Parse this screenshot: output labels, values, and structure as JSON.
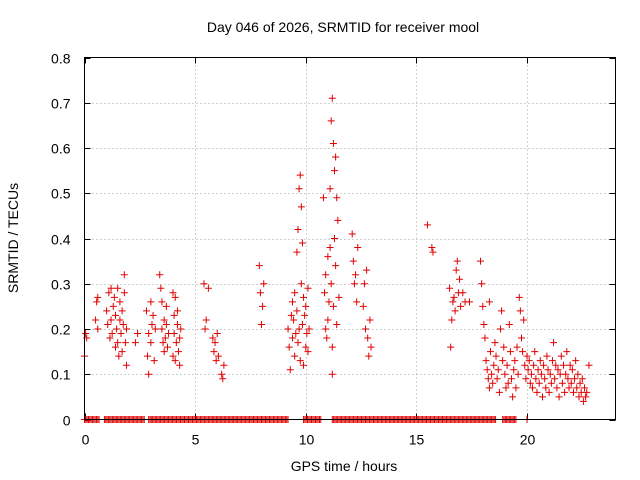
{
  "chart_data": {
    "type": "scatter",
    "title": "Day 046 of 2026, SRMTID for receiver mool",
    "xlabel": "GPS time / hours",
    "ylabel": "SRMTID / TECUs",
    "xlim": [
      0,
      24
    ],
    "ylim": [
      0,
      0.8
    ],
    "xticks": [
      "0",
      "5",
      "10",
      "15",
      "20"
    ],
    "xtick_values": [
      0,
      5,
      10,
      15,
      20
    ],
    "yticks": [
      "0",
      "0.1",
      "0.2",
      "0.3",
      "0.4",
      "0.5",
      "0.6",
      "0.7",
      "0.8"
    ],
    "ytick_values": [
      0,
      0.1,
      0.2,
      0.3,
      0.4,
      0.5,
      0.6,
      0.7,
      0.8
    ],
    "grid": true,
    "marker": "plus",
    "color": "#e00000",
    "series": [
      {
        "name": "SRMTID",
        "points": [
          [
            0.0,
            0.14
          ],
          [
            0.05,
            0.19
          ],
          [
            0.1,
            0.18
          ],
          [
            0.5,
            0.22
          ],
          [
            0.55,
            0.26
          ],
          [
            0.6,
            0.27
          ],
          [
            0.6,
            0.2
          ],
          [
            1.0,
            0.24
          ],
          [
            1.05,
            0.21
          ],
          [
            1.1,
            0.28
          ],
          [
            1.15,
            0.18
          ],
          [
            1.2,
            0.29
          ],
          [
            1.2,
            0.22
          ],
          [
            1.25,
            0.19
          ],
          [
            1.3,
            0.25
          ],
          [
            1.35,
            0.27
          ],
          [
            1.4,
            0.16
          ],
          [
            1.4,
            0.23
          ],
          [
            1.45,
            0.2
          ],
          [
            1.5,
            0.29
          ],
          [
            1.5,
            0.17
          ],
          [
            1.55,
            0.14
          ],
          [
            1.6,
            0.22
          ],
          [
            1.6,
            0.26
          ],
          [
            1.65,
            0.19
          ],
          [
            1.7,
            0.15
          ],
          [
            1.7,
            0.24
          ],
          [
            1.75,
            0.21
          ],
          [
            1.8,
            0.32
          ],
          [
            1.8,
            0.28
          ],
          [
            1.85,
            0.17
          ],
          [
            1.9,
            0.12
          ],
          [
            1.9,
            0.2
          ],
          [
            2.3,
            0.17
          ],
          [
            2.4,
            0.19
          ],
          [
            2.8,
            0.24
          ],
          [
            2.85,
            0.14
          ],
          [
            2.9,
            0.1
          ],
          [
            2.9,
            0.19
          ],
          [
            3.0,
            0.26
          ],
          [
            3.0,
            0.17
          ],
          [
            3.05,
            0.21
          ],
          [
            3.1,
            0.23
          ],
          [
            3.15,
            0.13
          ],
          [
            3.2,
            0.2
          ],
          [
            3.4,
            0.32
          ],
          [
            3.45,
            0.29
          ],
          [
            3.5,
            0.2
          ],
          [
            3.5,
            0.26
          ],
          [
            3.55,
            0.17
          ],
          [
            3.6,
            0.15
          ],
          [
            3.6,
            0.22
          ],
          [
            3.65,
            0.18
          ],
          [
            3.7,
            0.21
          ],
          [
            3.7,
            0.25
          ],
          [
            3.75,
            0.16
          ],
          [
            3.8,
            0.19
          ],
          [
            4.0,
            0.28
          ],
          [
            4.0,
            0.14
          ],
          [
            4.05,
            0.23
          ],
          [
            4.05,
            0.19
          ],
          [
            4.1,
            0.27
          ],
          [
            4.1,
            0.13
          ],
          [
            4.15,
            0.17
          ],
          [
            4.2,
            0.21
          ],
          [
            4.2,
            0.24
          ],
          [
            4.25,
            0.15
          ],
          [
            4.3,
            0.12
          ],
          [
            4.3,
            0.18
          ],
          [
            4.35,
            0.2
          ],
          [
            5.4,
            0.3
          ],
          [
            5.45,
            0.2
          ],
          [
            5.5,
            0.22
          ],
          [
            5.6,
            0.29
          ],
          [
            5.8,
            0.18
          ],
          [
            5.85,
            0.15
          ],
          [
            5.9,
            0.17
          ],
          [
            5.95,
            0.13
          ],
          [
            6.0,
            0.19
          ],
          [
            6.05,
            0.14
          ],
          [
            6.2,
            0.1
          ],
          [
            6.25,
            0.09
          ],
          [
            6.3,
            0.12
          ],
          [
            7.9,
            0.34
          ],
          [
            7.95,
            0.28
          ],
          [
            8.0,
            0.21
          ],
          [
            8.05,
            0.25
          ],
          [
            8.1,
            0.3
          ],
          [
            9.2,
            0.2
          ],
          [
            9.25,
            0.16
          ],
          [
            9.3,
            0.11
          ],
          [
            9.35,
            0.23
          ],
          [
            9.4,
            0.26
          ],
          [
            9.4,
            0.18
          ],
          [
            9.45,
            0.22
          ],
          [
            9.5,
            0.28
          ],
          [
            9.5,
            0.14
          ],
          [
            9.55,
            0.19
          ],
          [
            9.6,
            0.37
          ],
          [
            9.6,
            0.24
          ],
          [
            9.65,
            0.42
          ],
          [
            9.65,
            0.17
          ],
          [
            9.7,
            0.51
          ],
          [
            9.7,
            0.2
          ],
          [
            9.75,
            0.54
          ],
          [
            9.75,
            0.13
          ],
          [
            9.8,
            0.47
          ],
          [
            9.8,
            0.3
          ],
          [
            9.85,
            0.39
          ],
          [
            9.85,
            0.21
          ],
          [
            9.9,
            0.27
          ],
          [
            9.9,
            0.12
          ],
          [
            9.95,
            0.23
          ],
          [
            10.0,
            0.25
          ],
          [
            10.0,
            0.16
          ],
          [
            10.05,
            0.19
          ],
          [
            10.1,
            0.29
          ],
          [
            10.1,
            0.15
          ],
          [
            10.15,
            0.2
          ],
          [
            10.8,
            0.49
          ],
          [
            10.85,
            0.28
          ],
          [
            10.9,
            0.2
          ],
          [
            10.9,
            0.32
          ],
          [
            10.95,
            0.18
          ],
          [
            11.0,
            0.22
          ],
          [
            11.0,
            0.36
          ],
          [
            11.05,
            0.26
          ],
          [
            11.1,
            0.51
          ],
          [
            11.1,
            0.38
          ],
          [
            11.15,
            0.66
          ],
          [
            11.15,
            0.3
          ],
          [
            11.2,
            0.71
          ],
          [
            11.2,
            0.16
          ],
          [
            11.25,
            0.61
          ],
          [
            11.25,
            0.25
          ],
          [
            11.3,
            0.55
          ],
          [
            11.3,
            0.4
          ],
          [
            11.35,
            0.58
          ],
          [
            11.35,
            0.34
          ],
          [
            11.4,
            0.49
          ],
          [
            11.4,
            0.21
          ],
          [
            11.45,
            0.44
          ],
          [
            11.5,
            0.27
          ],
          [
            11.2,
            0.1
          ],
          [
            12.1,
            0.41
          ],
          [
            12.15,
            0.35
          ],
          [
            12.2,
            0.3
          ],
          [
            12.25,
            0.32
          ],
          [
            12.3,
            0.26
          ],
          [
            12.35,
            0.38
          ],
          [
            12.6,
            0.25
          ],
          [
            12.65,
            0.3
          ],
          [
            12.7,
            0.2
          ],
          [
            12.75,
            0.33
          ],
          [
            12.8,
            0.18
          ],
          [
            12.85,
            0.14
          ],
          [
            12.9,
            0.22
          ],
          [
            12.95,
            0.16
          ],
          [
            15.5,
            0.43
          ],
          [
            15.7,
            0.38
          ],
          [
            15.75,
            0.37
          ],
          [
            16.5,
            0.29
          ],
          [
            16.55,
            0.16
          ],
          [
            16.6,
            0.22
          ],
          [
            16.65,
            0.26
          ],
          [
            16.7,
            0.27
          ],
          [
            16.75,
            0.24
          ],
          [
            16.8,
            0.33
          ],
          [
            16.85,
            0.35
          ],
          [
            16.9,
            0.28
          ],
          [
            16.95,
            0.31
          ],
          [
            17.0,
            0.25
          ],
          [
            17.1,
            0.28
          ],
          [
            17.2,
            0.26
          ],
          [
            17.4,
            0.26
          ],
          [
            17.9,
            0.35
          ],
          [
            17.95,
            0.3
          ],
          [
            18.0,
            0.25
          ],
          [
            18.05,
            0.21
          ],
          [
            18.1,
            0.18
          ],
          [
            18.15,
            0.13
          ],
          [
            18.2,
            0.11
          ],
          [
            18.25,
            0.09
          ],
          [
            18.3,
            0.26
          ],
          [
            18.3,
            0.07
          ],
          [
            18.35,
            0.15
          ],
          [
            18.4,
            0.1
          ],
          [
            18.45,
            0.08
          ],
          [
            18.5,
            0.12
          ],
          [
            18.55,
            0.17
          ],
          [
            18.6,
            0.14
          ],
          [
            18.65,
            0.09
          ],
          [
            18.7,
            0.11
          ],
          [
            18.75,
            0.06
          ],
          [
            18.8,
            0.2
          ],
          [
            18.85,
            0.24
          ],
          [
            18.9,
            0.13
          ],
          [
            18.95,
            0.16
          ],
          [
            19.0,
            0.1
          ],
          [
            19.05,
            0.07
          ],
          [
            19.1,
            0.12
          ],
          [
            19.15,
            0.08
          ],
          [
            19.2,
            0.21
          ],
          [
            19.25,
            0.15
          ],
          [
            19.3,
            0.09
          ],
          [
            19.35,
            0.05
          ],
          [
            19.4,
            0.11
          ],
          [
            19.45,
            0.13
          ],
          [
            19.5,
            0.07
          ],
          [
            19.55,
            0.16
          ],
          [
            19.6,
            0.1
          ],
          [
            19.65,
            0.27
          ],
          [
            19.7,
            0.24
          ],
          [
            19.75,
            0.18
          ],
          [
            19.8,
            0.15
          ],
          [
            19.85,
            0.22
          ],
          [
            19.9,
            0.12
          ],
          [
            19.95,
            0.09
          ],
          [
            20.0,
            0.14
          ],
          [
            20.05,
            0.11
          ],
          [
            20.1,
            0.13
          ],
          [
            20.15,
            0.08
          ],
          [
            20.2,
            0.1
          ],
          [
            20.25,
            0.07
          ],
          [
            20.3,
            0.12
          ],
          [
            20.35,
            0.15
          ],
          [
            20.4,
            0.09
          ],
          [
            20.45,
            0.06
          ],
          [
            20.5,
            0.11
          ],
          [
            20.55,
            0.08
          ],
          [
            20.6,
            0.13
          ],
          [
            20.65,
            0.1
          ],
          [
            20.7,
            0.05
          ],
          [
            20.75,
            0.12
          ],
          [
            20.8,
            0.09
          ],
          [
            20.85,
            0.07
          ],
          [
            20.9,
            0.14
          ],
          [
            20.95,
            0.11
          ],
          [
            21.0,
            0.06
          ],
          [
            21.05,
            0.1
          ],
          [
            21.1,
            0.08
          ],
          [
            21.15,
            0.13
          ],
          [
            21.2,
            0.17
          ],
          [
            21.25,
            0.09
          ],
          [
            21.3,
            0.12
          ],
          [
            21.35,
            0.07
          ],
          [
            21.4,
            0.11
          ],
          [
            21.45,
            0.05
          ],
          [
            21.5,
            0.1
          ],
          [
            21.55,
            0.14
          ],
          [
            21.6,
            0.08
          ],
          [
            21.65,
            0.12
          ],
          [
            21.7,
            0.06
          ],
          [
            21.75,
            0.1
          ],
          [
            21.8,
            0.15
          ],
          [
            21.85,
            0.09
          ],
          [
            21.9,
            0.07
          ],
          [
            21.95,
            0.12
          ],
          [
            22.0,
            0.08
          ],
          [
            22.05,
            0.11
          ],
          [
            22.1,
            0.06
          ],
          [
            22.15,
            0.09
          ],
          [
            22.2,
            0.13
          ],
          [
            22.25,
            0.07
          ],
          [
            22.3,
            0.1
          ],
          [
            22.35,
            0.05
          ],
          [
            22.4,
            0.08
          ],
          [
            22.45,
            0.06
          ],
          [
            22.5,
            0.09
          ],
          [
            22.55,
            0.04
          ],
          [
            22.6,
            0.07
          ],
          [
            22.65,
            0.05
          ],
          [
            22.7,
            0.06
          ],
          [
            22.8,
            0.12
          ]
        ]
      }
    ],
    "zero_segments": [
      [
        0.0,
        0.7
      ],
      [
        0.9,
        2.7
      ],
      [
        2.9,
        9.2
      ],
      [
        9.9,
        10.7
      ],
      [
        11.2,
        18.6
      ],
      [
        18.9,
        19.5
      ],
      [
        20.0,
        20.0
      ]
    ]
  }
}
